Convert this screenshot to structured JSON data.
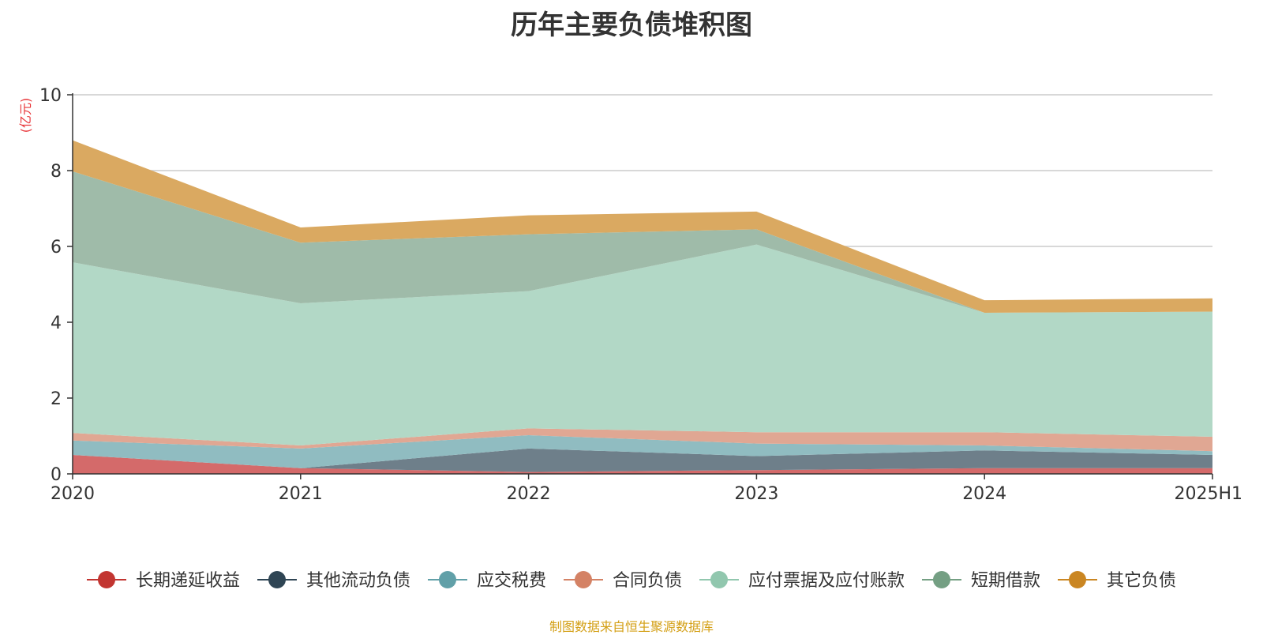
{
  "chart_data": {
    "type": "area",
    "stacked": true,
    "title": "历年主要负债堆积图",
    "y_unit": "(亿元)",
    "source": "制图数据来自恒生聚源数据库",
    "ylim": [
      0,
      10
    ],
    "yticks": [
      0,
      2,
      4,
      6,
      8,
      10
    ],
    "grid": true,
    "legend_position": "bottom",
    "categories": [
      "2020",
      "2021",
      "2022",
      "2023",
      "2024",
      "2025H1"
    ],
    "series": [
      {
        "name": "长期递延收益",
        "color": "#c23531",
        "fill": "#d46a6a",
        "values": [
          0.5,
          0.15,
          0.05,
          0.1,
          0.15,
          0.15
        ]
      },
      {
        "name": "其他流动负债",
        "color": "#2f4554",
        "fill": "#6e7f8a",
        "values": [
          0.0,
          0.0,
          0.62,
          0.37,
          0.47,
          0.35
        ]
      },
      {
        "name": "应交税费",
        "color": "#61a0a8",
        "fill": "#90bcc1",
        "values": [
          0.38,
          0.52,
          0.35,
          0.33,
          0.13,
          0.1
        ]
      },
      {
        "name": "合同负债",
        "color": "#d48265",
        "fill": "#e0a793",
        "values": [
          0.2,
          0.08,
          0.18,
          0.3,
          0.35,
          0.38
        ]
      },
      {
        "name": "应付票据及应付账款",
        "color": "#91c7ae",
        "fill": "#b2d8c6",
        "values": [
          4.5,
          3.75,
          3.62,
          4.95,
          3.15,
          3.3
        ]
      },
      {
        "name": "短期借款",
        "color": "#749f83",
        "fill": "#9fbba9",
        "values": [
          2.4,
          1.6,
          1.5,
          0.4,
          0.0,
          0.0
        ]
      },
      {
        "name": "其它负债",
        "color": "#ca8622",
        "fill": "#daa961",
        "values": [
          0.82,
          0.4,
          0.5,
          0.47,
          0.33,
          0.35
        ]
      }
    ]
  }
}
